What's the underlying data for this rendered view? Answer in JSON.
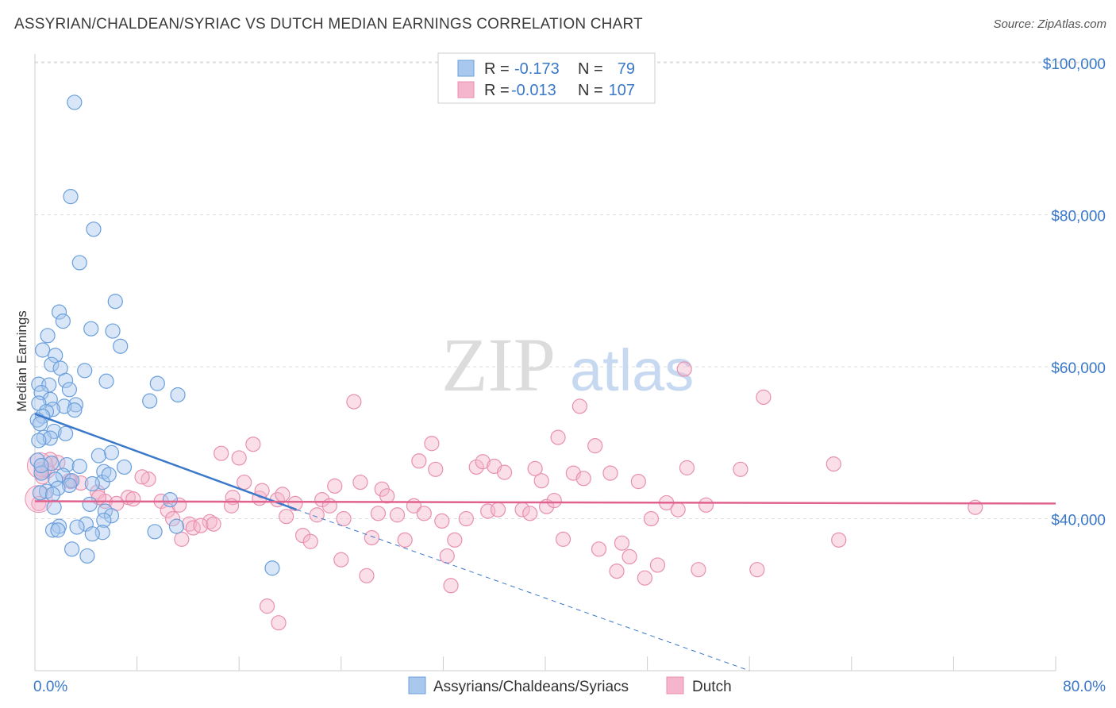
{
  "title": "ASSYRIAN/CHALDEAN/SYRIAC VS DUTCH MEDIAN EARNINGS CORRELATION CHART",
  "source": "Source: ZipAtlas.com",
  "watermark_left": "ZIP",
  "watermark_right": "atlas",
  "colors": {
    "blue_fill": "#a9c8ee",
    "blue_stroke": "#6a9fdc",
    "blue_line": "#3a78c9",
    "pink_fill": "#f5b5cc",
    "pink_stroke": "#e890b0",
    "pink_line": "#e0628f",
    "tick_text": "#3a78c9",
    "grid": "#dddddd"
  },
  "legend": {
    "r_label": "R =",
    "n_label": "N =",
    "rows": [
      {
        "r": "-0.173",
        "n": "79",
        "color": "blue"
      },
      {
        "r": "-0.013",
        "n": "107",
        "color": "pink"
      }
    ]
  },
  "chart_data": {
    "type": "scatter",
    "title": "ASSYRIAN/CHALDEAN/SYRIAC VS DUTCH MEDIAN EARNINGS CORRELATION CHART",
    "xlabel": "",
    "ylabel": "Median Earnings",
    "xlim": [
      0,
      80
    ],
    "ylim": [
      20000,
      102000
    ],
    "x_tick_labels": [
      "0.0%",
      "80.0%"
    ],
    "y_ticks": [
      40000,
      60000,
      80000,
      100000
    ],
    "y_tick_labels": [
      "$40,000",
      "$60,000",
      "$80,000",
      "$100,000"
    ],
    "grid": true,
    "legend_position": "top-center",
    "series": [
      {
        "name": "Assyrians/Chaldeans/Syriacs",
        "color": "blue",
        "trend": {
          "x0": 0,
          "y0": 53800,
          "x1": 20.5,
          "y1": 41200,
          "dash_to_x": 56,
          "dash_to_y": 20000
        },
        "points": [
          [
            3.1,
            94800
          ],
          [
            2.8,
            82400
          ],
          [
            4.6,
            78100
          ],
          [
            3.5,
            73700
          ],
          [
            6.3,
            68600
          ],
          [
            1.9,
            67200
          ],
          [
            2.2,
            66000
          ],
          [
            4.4,
            65000
          ],
          [
            6.1,
            64700
          ],
          [
            1.0,
            64100
          ],
          [
            6.7,
            62700
          ],
          [
            0.6,
            62200
          ],
          [
            1.6,
            61500
          ],
          [
            1.3,
            60300
          ],
          [
            2.0,
            59800
          ],
          [
            3.9,
            59500
          ],
          [
            2.4,
            58200
          ],
          [
            5.6,
            58100
          ],
          [
            9.6,
            57800
          ],
          [
            0.3,
            57700
          ],
          [
            1.1,
            57600
          ],
          [
            2.7,
            57000
          ],
          [
            0.5,
            56600
          ],
          [
            11.2,
            56300
          ],
          [
            1.2,
            55700
          ],
          [
            9.0,
            55500
          ],
          [
            0.3,
            55200
          ],
          [
            3.2,
            55000
          ],
          [
            2.3,
            54800
          ],
          [
            1.4,
            54400
          ],
          [
            0.9,
            54100
          ],
          [
            3.1,
            54300
          ],
          [
            0.6,
            53500
          ],
          [
            0.2,
            53000
          ],
          [
            0.4,
            52500
          ],
          [
            1.5,
            51500
          ],
          [
            2.4,
            51200
          ],
          [
            0.7,
            50700
          ],
          [
            1.2,
            50600
          ],
          [
            0.3,
            50300
          ],
          [
            6.0,
            48700
          ],
          [
            5.0,
            48300
          ],
          [
            0.2,
            47700
          ],
          [
            1.3,
            47300
          ],
          [
            2.5,
            47100
          ],
          [
            3.5,
            46900
          ],
          [
            7.0,
            46800
          ],
          [
            5.4,
            46200
          ],
          [
            0.5,
            46000
          ],
          [
            2.2,
            45700
          ],
          [
            1.6,
            45200
          ],
          [
            2.9,
            45000
          ],
          [
            5.3,
            44800
          ],
          [
            4.5,
            44600
          ],
          [
            2.7,
            44400
          ],
          [
            1.8,
            44000
          ],
          [
            0.9,
            43600
          ],
          [
            0.4,
            43400
          ],
          [
            1.4,
            43200
          ],
          [
            10.6,
            42500
          ],
          [
            4.3,
            41900
          ],
          [
            1.5,
            41500
          ],
          [
            5.5,
            41000
          ],
          [
            6.0,
            40400
          ],
          [
            5.4,
            39800
          ],
          [
            4.0,
            39300
          ],
          [
            11.1,
            39000
          ],
          [
            1.9,
            39000
          ],
          [
            3.3,
            38900
          ],
          [
            1.4,
            38500
          ],
          [
            1.8,
            38500
          ],
          [
            9.4,
            38300
          ],
          [
            5.3,
            38200
          ],
          [
            4.5,
            38000
          ],
          [
            2.9,
            36000
          ],
          [
            4.1,
            35100
          ],
          [
            18.6,
            33500
          ],
          [
            0.5,
            47000
          ],
          [
            5.8,
            45800
          ]
        ]
      },
      {
        "name": "Dutch",
        "color": "pink",
        "trend": {
          "x0": 0,
          "y0": 42300,
          "x1": 80,
          "y1": 42000
        },
        "points": [
          [
            1.8,
            47400
          ],
          [
            1.0,
            46300
          ],
          [
            0.6,
            45500
          ],
          [
            2.8,
            44900
          ],
          [
            8.9,
            45200
          ],
          [
            3.6,
            44700
          ],
          [
            8.4,
            45500
          ],
          [
            2.7,
            45000
          ],
          [
            4.9,
            43500
          ],
          [
            7.3,
            42800
          ],
          [
            5.5,
            42300
          ],
          [
            6.4,
            42000
          ],
          [
            9.9,
            42300
          ],
          [
            10.4,
            41100
          ],
          [
            11.3,
            41800
          ],
          [
            12.1,
            39300
          ],
          [
            10.8,
            40000
          ],
          [
            12.4,
            38800
          ],
          [
            13.7,
            39600
          ],
          [
            13.0,
            39100
          ],
          [
            11.5,
            37300
          ],
          [
            14.0,
            39300
          ],
          [
            14.6,
            48600
          ],
          [
            16.0,
            48000
          ],
          [
            17.1,
            49800
          ],
          [
            15.5,
            42800
          ],
          [
            15.4,
            41700
          ],
          [
            16.4,
            44800
          ],
          [
            17.6,
            42700
          ],
          [
            17.8,
            43700
          ],
          [
            19.0,
            42500
          ],
          [
            19.4,
            43200
          ],
          [
            18.2,
            28500
          ],
          [
            19.1,
            26300
          ],
          [
            19.7,
            40300
          ],
          [
            20.4,
            42000
          ],
          [
            21.0,
            37800
          ],
          [
            21.6,
            37000
          ],
          [
            22.1,
            40500
          ],
          [
            22.5,
            42500
          ],
          [
            23.1,
            41700
          ],
          [
            23.5,
            44300
          ],
          [
            24.2,
            40000
          ],
          [
            24.0,
            34600
          ],
          [
            25.0,
            55400
          ],
          [
            25.5,
            44800
          ],
          [
            26.0,
            32500
          ],
          [
            26.4,
            37500
          ],
          [
            26.9,
            40700
          ],
          [
            27.2,
            43900
          ],
          [
            27.6,
            43000
          ],
          [
            28.4,
            40500
          ],
          [
            29.0,
            37200
          ],
          [
            29.7,
            41700
          ],
          [
            30.1,
            47600
          ],
          [
            30.5,
            40700
          ],
          [
            31.1,
            49900
          ],
          [
            31.4,
            46500
          ],
          [
            31.9,
            39700
          ],
          [
            32.3,
            35100
          ],
          [
            32.6,
            31200
          ],
          [
            32.9,
            37200
          ],
          [
            33.8,
            40000
          ],
          [
            34.6,
            46800
          ],
          [
            35.1,
            47500
          ],
          [
            35.5,
            41000
          ],
          [
            36.0,
            46900
          ],
          [
            36.3,
            41200
          ],
          [
            36.8,
            46100
          ],
          [
            38.2,
            41200
          ],
          [
            38.8,
            40700
          ],
          [
            39.2,
            46600
          ],
          [
            39.7,
            45000
          ],
          [
            40.1,
            41600
          ],
          [
            40.7,
            42400
          ],
          [
            41.0,
            50700
          ],
          [
            41.4,
            37300
          ],
          [
            42.2,
            46000
          ],
          [
            42.7,
            54800
          ],
          [
            43.0,
            45300
          ],
          [
            43.9,
            49600
          ],
          [
            44.2,
            36000
          ],
          [
            45.1,
            46000
          ],
          [
            45.6,
            33100
          ],
          [
            46.0,
            36800
          ],
          [
            46.6,
            35000
          ],
          [
            47.3,
            44900
          ],
          [
            47.8,
            32200
          ],
          [
            48.3,
            40000
          ],
          [
            48.8,
            33900
          ],
          [
            49.5,
            42100
          ],
          [
            50.4,
            41200
          ],
          [
            50.9,
            59700
          ],
          [
            51.1,
            46700
          ],
          [
            52.0,
            33300
          ],
          [
            52.6,
            41800
          ],
          [
            55.3,
            46500
          ],
          [
            56.6,
            33300
          ],
          [
            57.1,
            56000
          ],
          [
            62.6,
            47200
          ],
          [
            63.0,
            37200
          ],
          [
            73.7,
            41500
          ],
          [
            0.5,
            46500
          ],
          [
            1.2,
            47800
          ],
          [
            0.3,
            42000
          ],
          [
            7.7,
            42600
          ],
          [
            5.0,
            42800
          ]
        ]
      }
    ]
  }
}
